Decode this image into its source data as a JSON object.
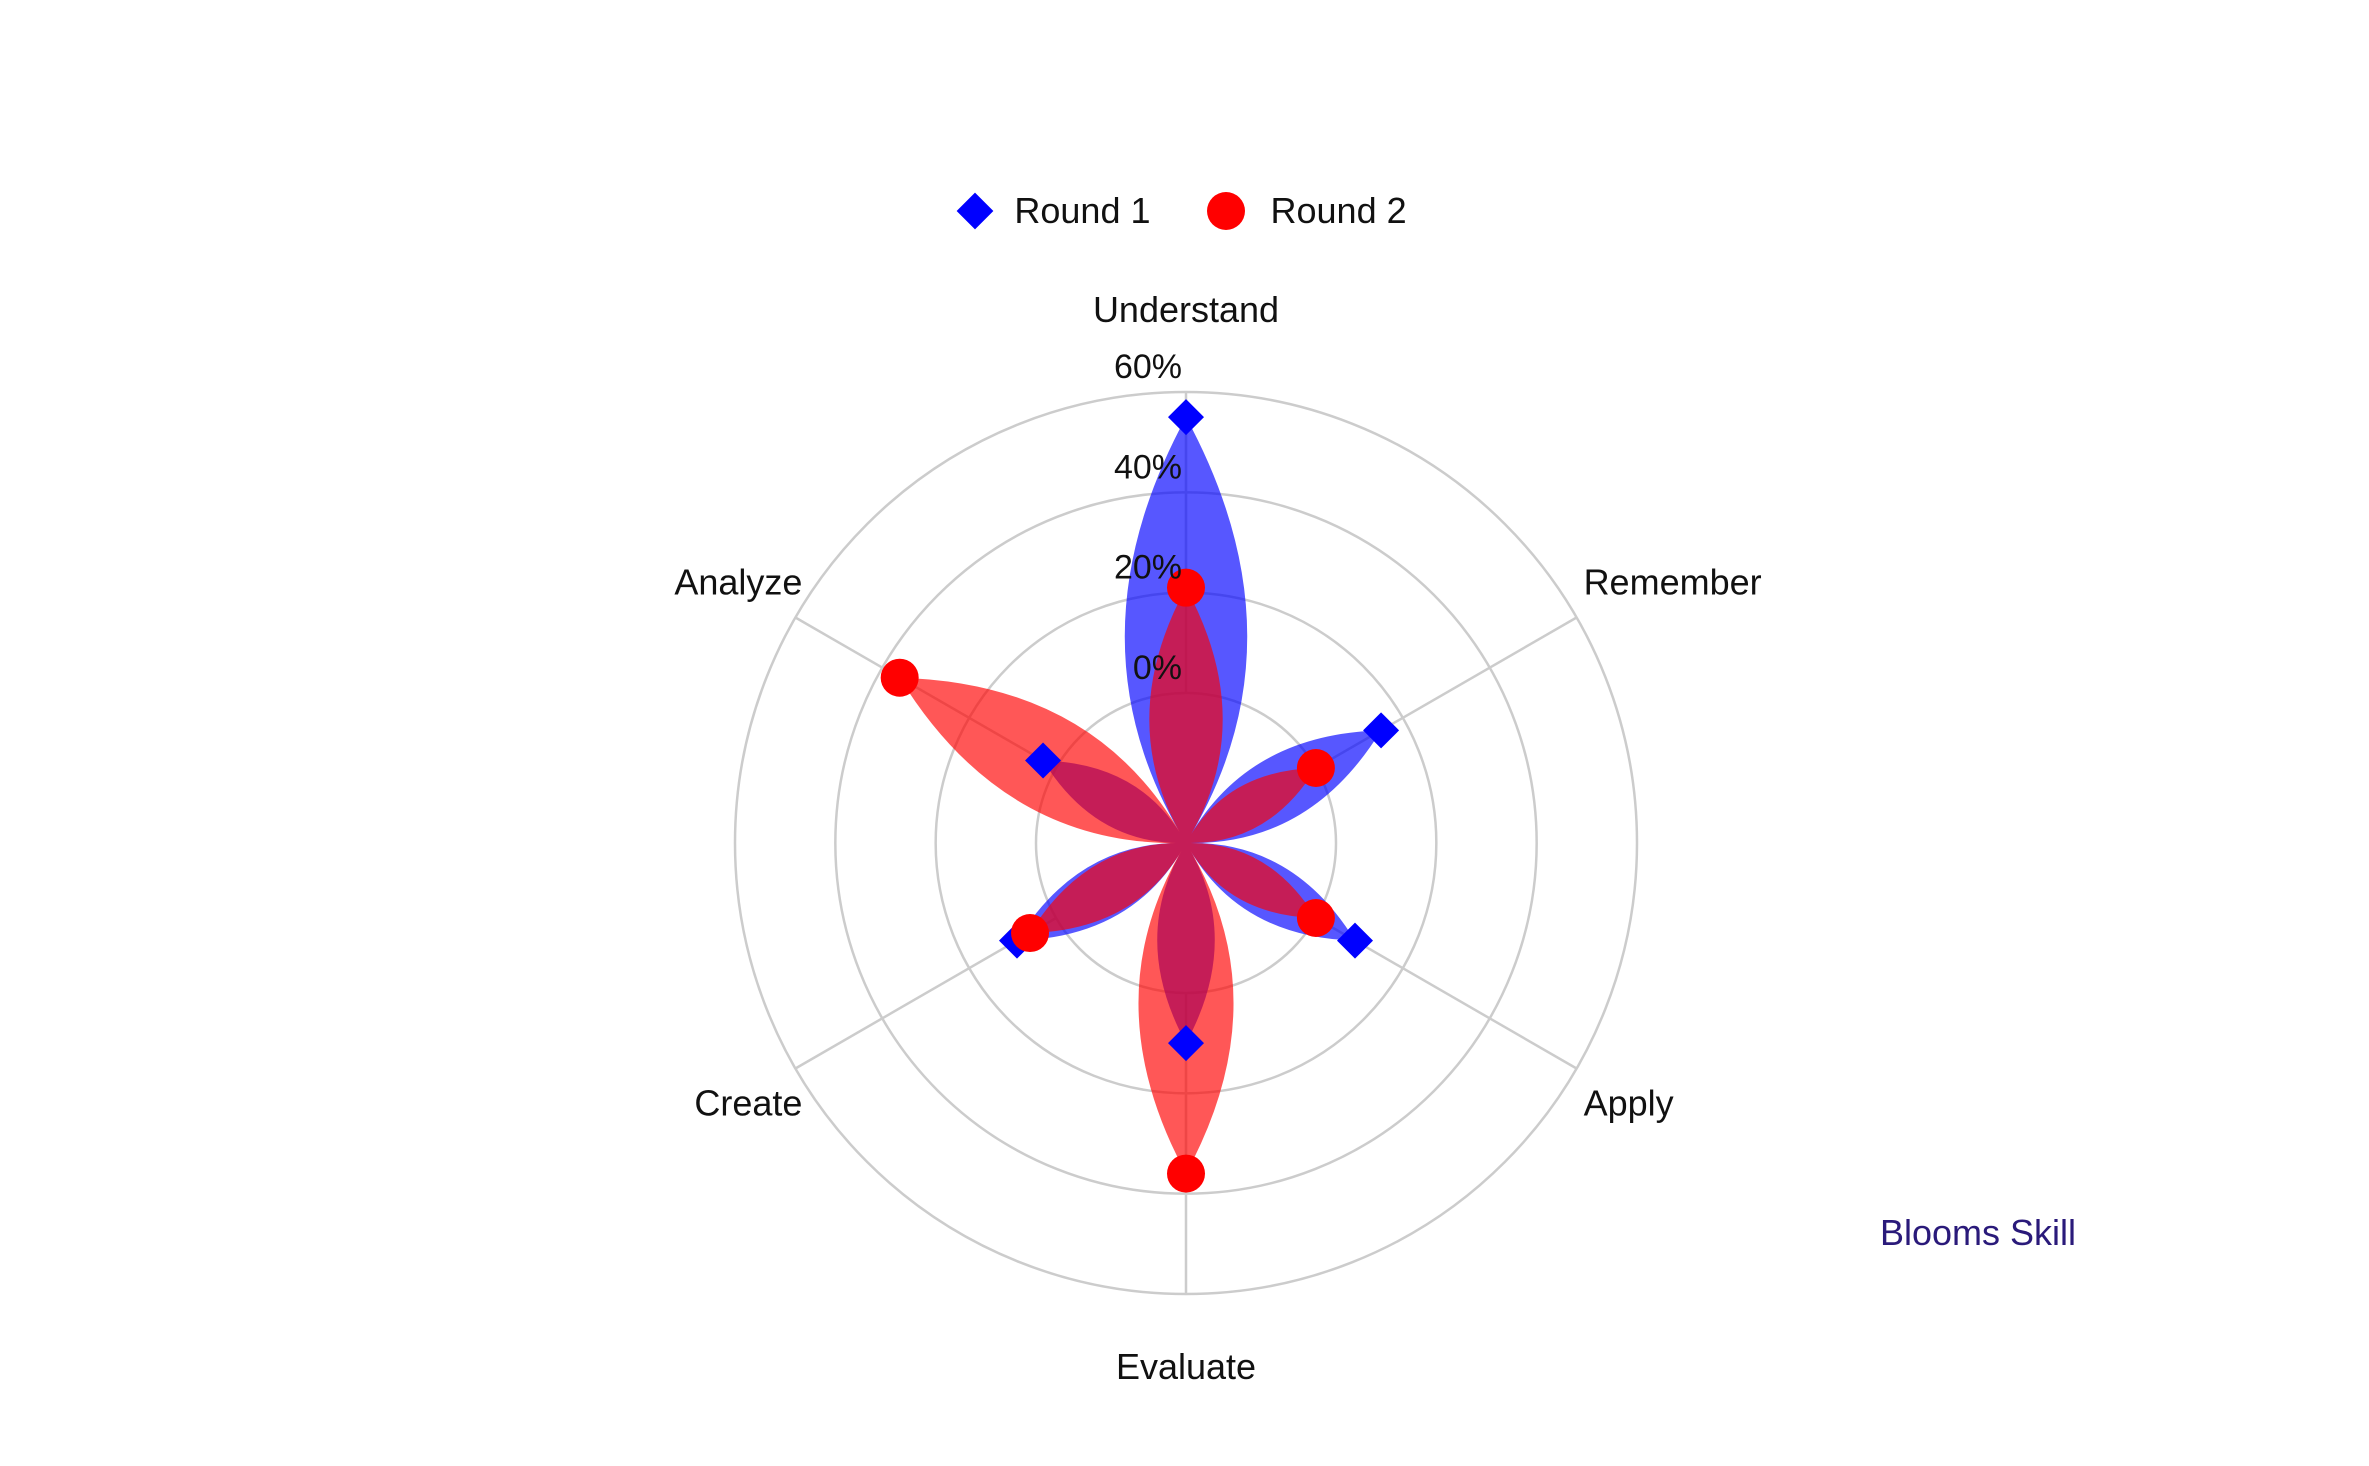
{
  "chart_data": {
    "type": "radar",
    "categories": [
      "Understand",
      "Remember",
      "Apply",
      "Evaluate",
      "Create",
      "Analyze"
    ],
    "series": [
      {
        "name": "Round 1",
        "marker": "diamond",
        "color": "#0000ff",
        "values": [
          55,
          15,
          9,
          10,
          9,
          3
        ]
      },
      {
        "name": "Round 2",
        "marker": "circle",
        "color": "#ff0000",
        "values": [
          21,
          0,
          0,
          36,
          6,
          36
        ]
      }
    ],
    "radial_ticks": [
      "0%",
      "20%",
      "40%",
      "60%"
    ],
    "radial_tick_values": [
      0,
      20,
      40,
      60
    ],
    "rmax": 60,
    "grid": true,
    "legend_position": "top",
    "annotation": "Blooms Skill",
    "annotation_color": "#2a1a7a",
    "grid_color": "#cccccc"
  }
}
